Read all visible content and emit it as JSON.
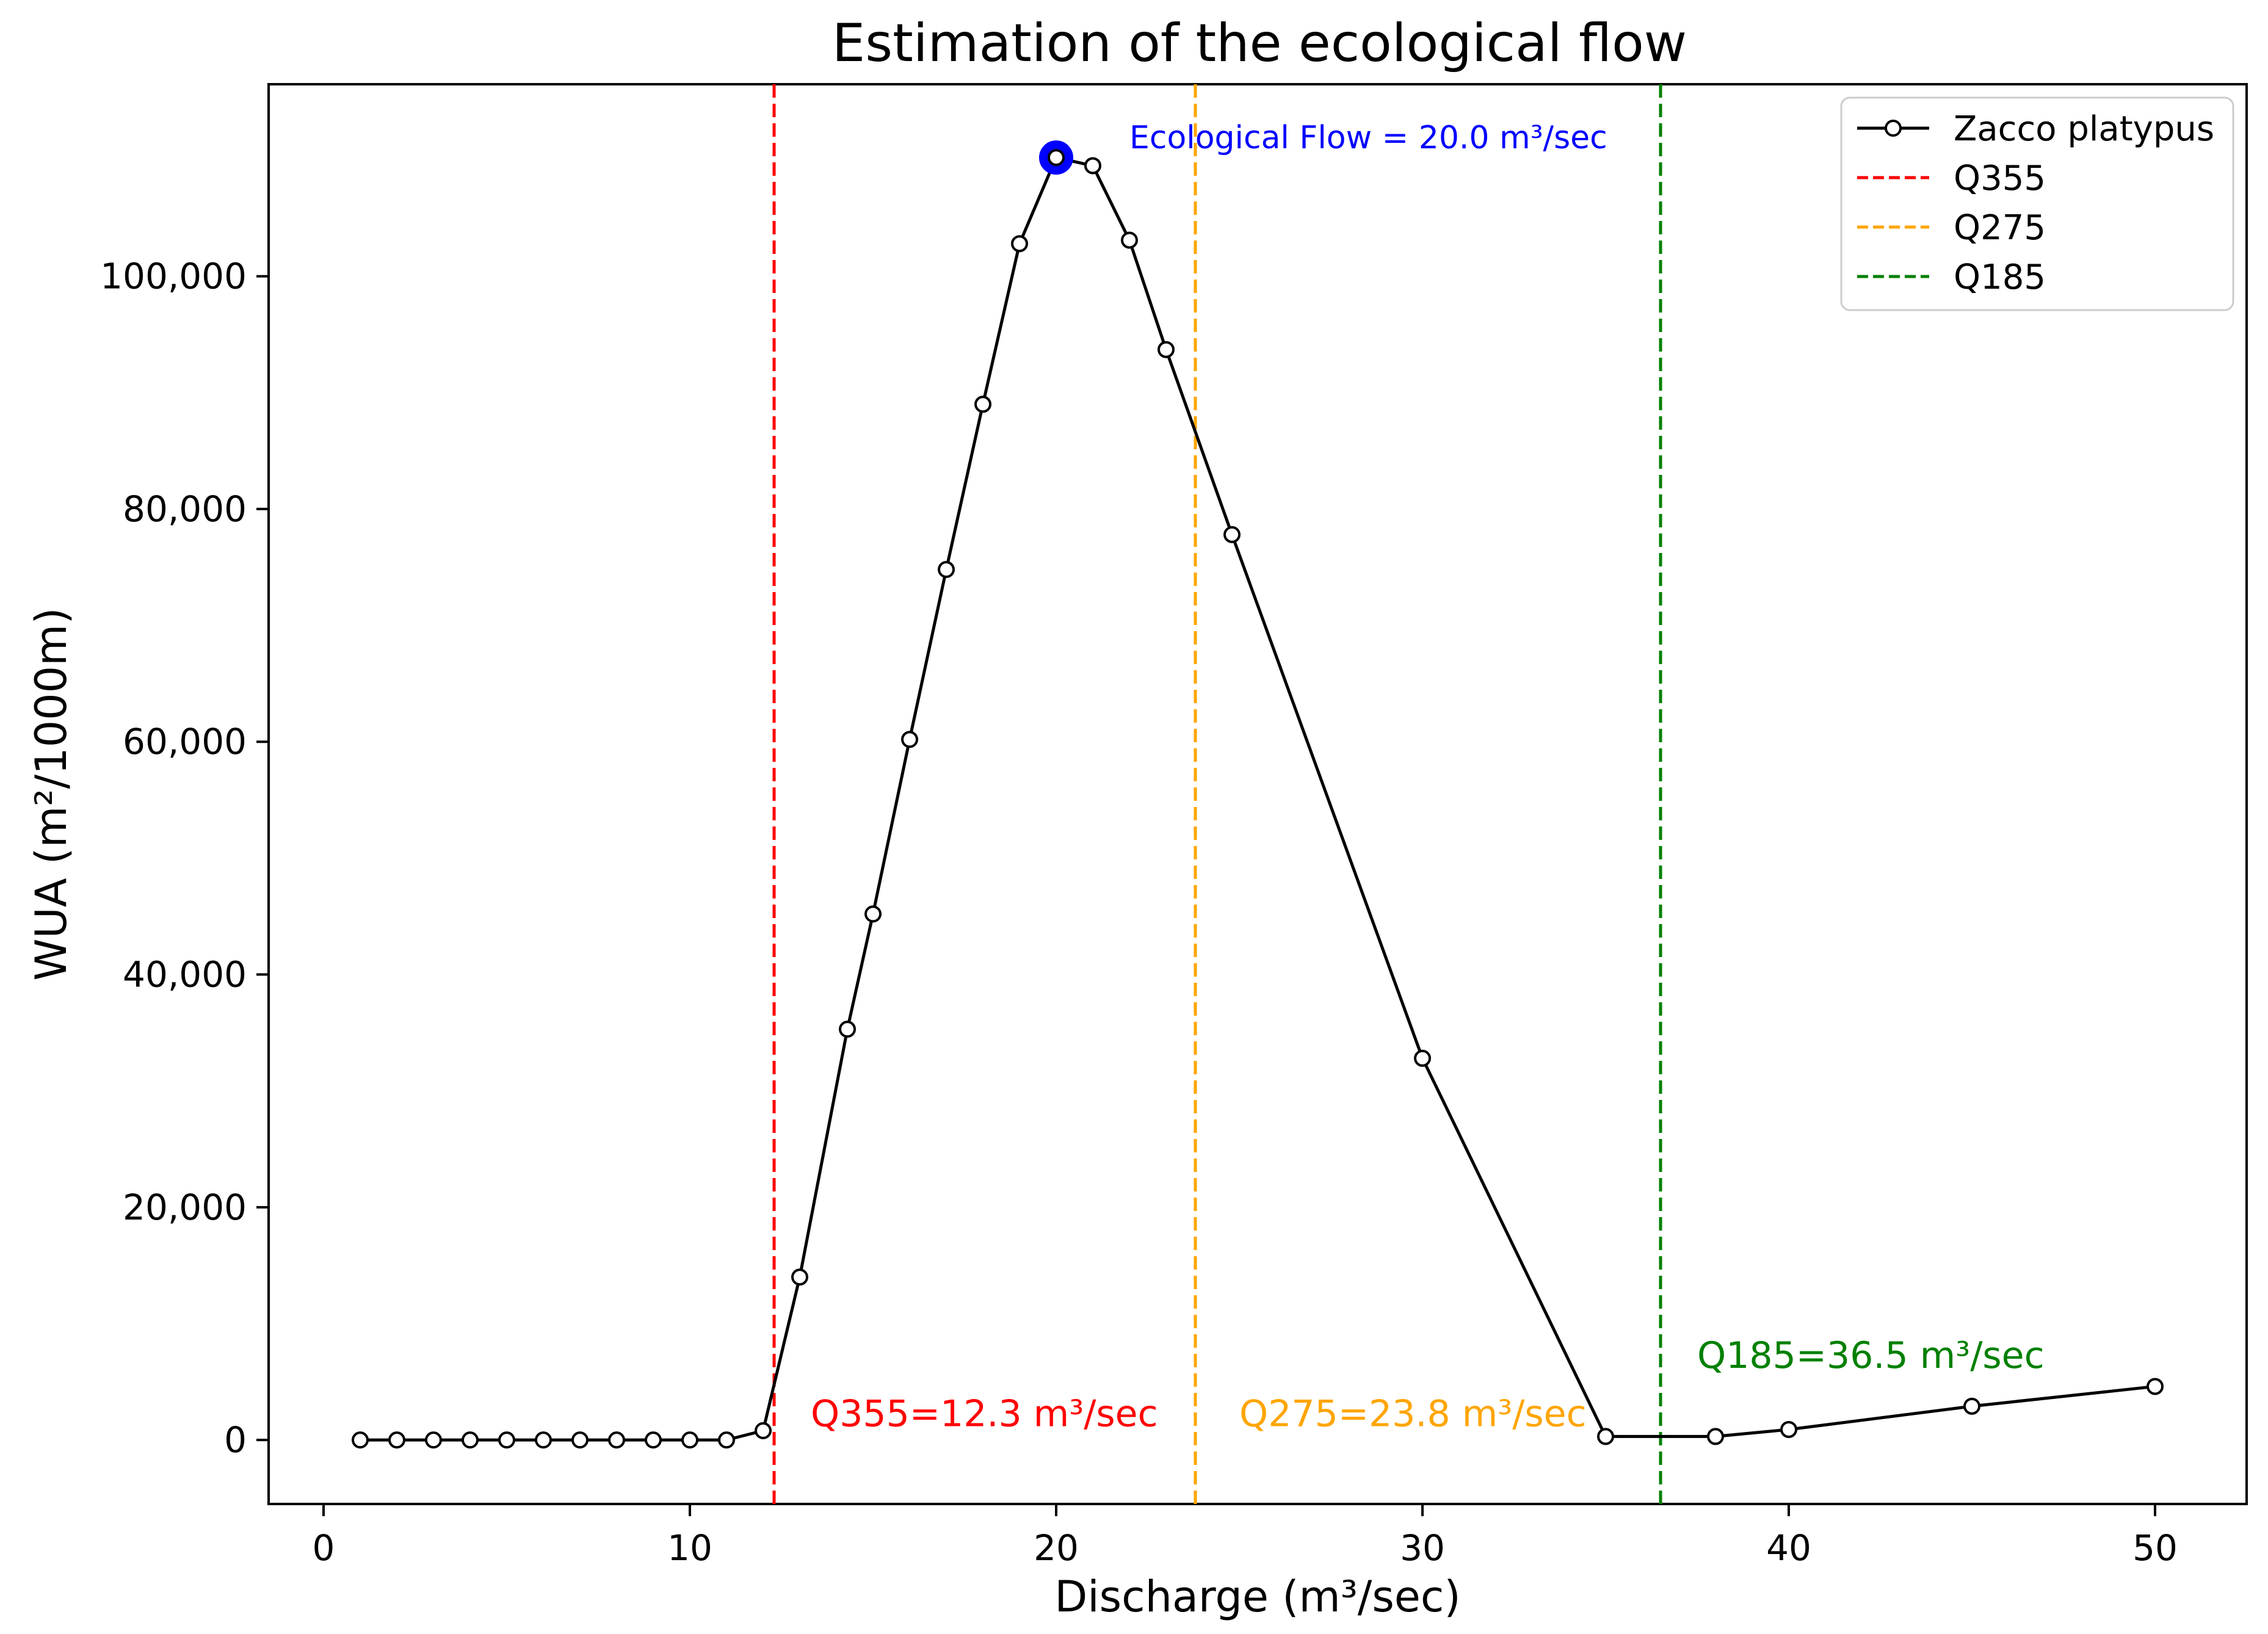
{
  "chart_data": {
    "type": "line",
    "title": "Estimation of the ecological flow",
    "xlabel": "Discharge (m³/sec)",
    "ylabel": "WUA (m²/1000m)",
    "xlim": [
      -1.5,
      52.5
    ],
    "ylim": [
      -5500,
      116500
    ],
    "xticks": [
      0,
      10,
      20,
      30,
      40,
      50
    ],
    "xtick_labels": [
      "0",
      "10",
      "20",
      "30",
      "40",
      "50"
    ],
    "yticks": [
      0,
      20000,
      40000,
      60000,
      80000,
      100000
    ],
    "ytick_labels": [
      "0",
      "20,000",
      "40,000",
      "60,000",
      "80,000",
      "100,000"
    ],
    "grid": false,
    "legend_position": "top-right",
    "series": [
      {
        "name": "Zacco platypus",
        "color": "#000000",
        "marker": "open-circle",
        "x": [
          1,
          2,
          3,
          4,
          5,
          6,
          7,
          8,
          9,
          10,
          11,
          12,
          13,
          14.3,
          15,
          16,
          17,
          18,
          19,
          20,
          21,
          22,
          23,
          24.8,
          30,
          35,
          38,
          40,
          45,
          50
        ],
        "y": [
          0,
          0,
          0,
          0,
          0,
          0,
          0,
          0,
          0,
          0,
          0,
          800,
          14000,
          35300,
          45200,
          60200,
          74800,
          89000,
          102800,
          110200,
          109500,
          103100,
          93700,
          77800,
          32800,
          300,
          300,
          900,
          2900,
          4600
        ]
      }
    ],
    "vlines": [
      {
        "name": "Q355",
        "x": 12.3,
        "color": "#ff0000",
        "style": "dashed",
        "label": "Q355=12.3 m³/sec",
        "label_x": 13.3,
        "label_y": 1200
      },
      {
        "name": "Q275",
        "x": 23.8,
        "color": "#ffa500",
        "style": "dashed",
        "label": "Q275=23.8 m³/sec",
        "label_x": 25,
        "label_y": 1200
      },
      {
        "name": "Q185",
        "x": 36.5,
        "color": "#008000",
        "style": "dashed",
        "label": "Q185=36.5 m³/sec",
        "label_x": 37.5,
        "label_y": 6200
      }
    ],
    "highlight": {
      "x": 20,
      "y": 110200,
      "color": "#0000ff",
      "label": "Ecological Flow = 20.0 m³/sec",
      "label_x": 22,
      "label_y": 111000
    }
  }
}
